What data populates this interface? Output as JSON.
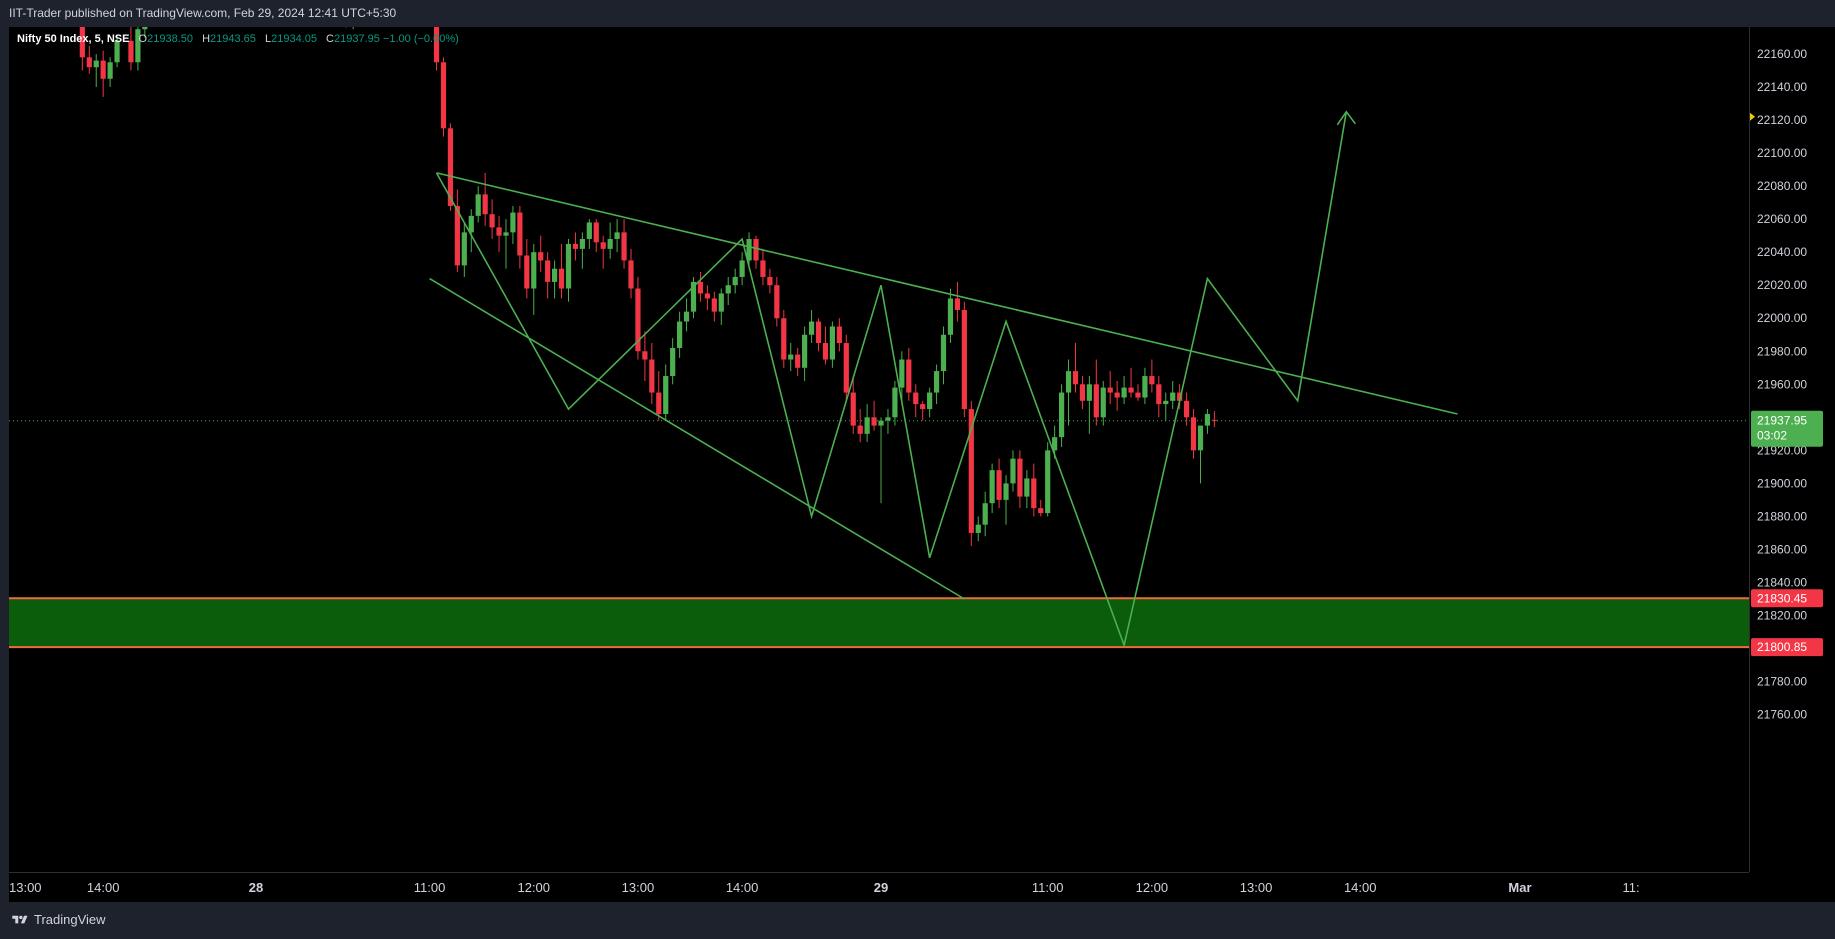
{
  "header": {
    "title": "IIT-Trader published on TradingView.com, Feb 29, 2024 12:41 UTC+5:30"
  },
  "legend": {
    "symbol": "Nifty 50 Index, 5, NSE",
    "open_label": "O",
    "open": "21938.50",
    "high_label": "H",
    "high": "21943.65",
    "low_label": "L",
    "low": "21934.05",
    "close_label": "C",
    "close": "21937.95",
    "change": "−1.00 (−0.00%)"
  },
  "footer": {
    "brand": "TradingView"
  },
  "colors": {
    "up": "#4caf50",
    "down": "#f23645",
    "drawing": "#4caf50",
    "zone_fill": "#0b5c0b",
    "zone_edge": "#ef6c3a"
  },
  "chart_data": {
    "type": "candlestick",
    "timeframe": "5",
    "y_range": [
      21745,
      22180
    ],
    "y_ticks": [
      "22160.00",
      "22140.00",
      "22120.00",
      "22100.00",
      "22080.00",
      "22060.00",
      "22040.00",
      "22020.00",
      "22000.00",
      "21980.00",
      "21960.00",
      "21920.00",
      "21900.00",
      "21880.00",
      "21860.00",
      "21840.00",
      "21820.00",
      "21780.00",
      "21760.00"
    ],
    "x_ticks": [
      "13:00",
      "14:00",
      "28",
      "11:00",
      "12:00",
      "13:00",
      "14:00",
      "29",
      "11:00",
      "12:00",
      "13:00",
      "14:00",
      "Mar",
      "11:"
    ],
    "x_ticks_bar": [
      0,
      15,
      37,
      62,
      77,
      92,
      107,
      127,
      151,
      166,
      181,
      196,
      219,
      235
    ],
    "current_price": {
      "value": 21937.95,
      "label": "21937.95",
      "countdown": "03:02"
    },
    "levels": [
      {
        "value": 21830.45,
        "label": "21830.45"
      },
      {
        "value": 21800.85,
        "label": "21800.85"
      }
    ],
    "demand_zone": {
      "top": 21830.45,
      "bottom": 21800.85
    },
    "candles": [
      [
        12,
        22180,
        22185,
        22150,
        22158
      ],
      [
        13,
        22158,
        22165,
        22148,
        22152
      ],
      [
        14,
        22152,
        22160,
        22140,
        22156
      ],
      [
        15,
        22156,
        22162,
        22134,
        22145
      ],
      [
        16,
        22145,
        22158,
        22140,
        22155
      ],
      [
        17,
        22155,
        22172,
        22152,
        22168
      ],
      [
        19,
        22168,
        22180,
        22150,
        22155
      ],
      [
        20,
        22155,
        22182,
        22150,
        22175
      ],
      [
        21,
        22175,
        22185,
        22170,
        22180
      ],
      [
        50,
        22182,
        22186,
        22176,
        22178
      ],
      [
        51,
        22178,
        22184,
        22175,
        22180
      ],
      [
        63,
        22180,
        22182,
        22150,
        22155
      ],
      [
        64,
        22155,
        22158,
        22110,
        22115
      ],
      [
        65,
        22115,
        22118,
        22065,
        22068
      ],
      [
        66,
        22068,
        22078,
        22028,
        22032
      ],
      [
        67,
        22032,
        22058,
        22025,
        22052
      ],
      [
        68,
        22052,
        22066,
        22040,
        22062
      ],
      [
        69,
        22062,
        22080,
        22058,
        22075
      ],
      [
        70,
        22075,
        22088,
        22056,
        22063
      ],
      [
        71,
        22063,
        22072,
        22048,
        22055
      ],
      [
        72,
        22055,
        22062,
        22040,
        22050
      ],
      [
        73,
        22050,
        22060,
        22030,
        22052
      ],
      [
        74,
        22052,
        22068,
        22045,
        22064
      ],
      [
        75,
        22064,
        22068,
        22030,
        22038
      ],
      [
        76,
        22038,
        22048,
        22012,
        22018
      ],
      [
        77,
        22018,
        22045,
        22002,
        22040
      ],
      [
        78,
        22040,
        22050,
        22028,
        22035
      ],
      [
        79,
        22035,
        22040,
        22012,
        22022
      ],
      [
        80,
        22022,
        22035,
        22012,
        22030
      ],
      [
        81,
        22030,
        22045,
        22012,
        22018
      ],
      [
        82,
        22018,
        22048,
        22010,
        22045
      ],
      [
        83,
        22045,
        22052,
        22035,
        22042
      ],
      [
        84,
        22042,
        22052,
        22030,
        22048
      ],
      [
        85,
        22048,
        22060,
        22042,
        22058
      ],
      [
        86,
        22058,
        22060,
        22040,
        22046
      ],
      [
        87,
        22046,
        22050,
        22030,
        22042
      ],
      [
        88,
        22042,
        22058,
        22036,
        22048
      ],
      [
        89,
        22048,
        22060,
        22040,
        22052
      ],
      [
        90,
        22052,
        22060,
        22030,
        22035
      ],
      [
        91,
        22035,
        22042,
        22012,
        22018
      ],
      [
        92,
        22018,
        22025,
        21975,
        21980
      ],
      [
        93,
        21980,
        21992,
        21962,
        21975
      ],
      [
        94,
        21975,
        21985,
        21948,
        21955
      ],
      [
        95,
        21955,
        21968,
        21938,
        21942
      ],
      [
        96,
        21942,
        21972,
        21938,
        21965
      ],
      [
        97,
        21965,
        21988,
        21960,
        21982
      ],
      [
        98,
        21982,
        22004,
        21976,
        21998
      ],
      [
        99,
        21998,
        22012,
        21992,
        22004
      ],
      [
        100,
        22004,
        22025,
        22000,
        22022
      ],
      [
        101,
        22022,
        22028,
        22010,
        22015
      ],
      [
        102,
        22015,
        22020,
        22005,
        22012
      ],
      [
        103,
        22012,
        22016,
        21998,
        22004
      ],
      [
        104,
        22004,
        22018,
        21996,
        22015
      ],
      [
        105,
        22015,
        22025,
        22008,
        22020
      ],
      [
        106,
        22020,
        22030,
        22015,
        22025
      ],
      [
        107,
        22025,
        22040,
        22020,
        22035
      ],
      [
        108,
        22035,
        22052,
        22030,
        22048
      ],
      [
        109,
        22048,
        22050,
        22030,
        22035
      ],
      [
        110,
        22035,
        22042,
        22020,
        22025
      ],
      [
        111,
        22025,
        22030,
        22015,
        22020
      ],
      [
        112,
        22020,
        22025,
        21995,
        22000
      ],
      [
        113,
        22000,
        22005,
        21970,
        21975
      ],
      [
        114,
        21975,
        21985,
        21968,
        21978
      ],
      [
        115,
        21978,
        21982,
        21965,
        21970
      ],
      [
        116,
        21970,
        21995,
        21962,
        21990
      ],
      [
        117,
        21990,
        22005,
        21985,
        21998
      ],
      [
        118,
        21998,
        22000,
        21980,
        21985
      ],
      [
        119,
        21985,
        21995,
        21972,
        21975
      ],
      [
        120,
        21975,
        21998,
        21970,
        21995
      ],
      [
        121,
        21995,
        22000,
        21980,
        21985
      ],
      [
        122,
        21985,
        21990,
        21950,
        21955
      ],
      [
        123,
        21955,
        21965,
        21930,
        21935
      ],
      [
        124,
        21935,
        21945,
        21925,
        21930
      ],
      [
        125,
        21930,
        21948,
        21925,
        21940
      ],
      [
        126,
        21940,
        21950,
        21932,
        21935
      ],
      [
        127,
        21935,
        21940,
        21888,
        21938
      ],
      [
        128,
        21938,
        21945,
        21930,
        21940
      ],
      [
        129,
        21940,
        21962,
        21935,
        21958
      ],
      [
        130,
        21958,
        21980,
        21950,
        21975
      ],
      [
        131,
        21975,
        21982,
        21950,
        21955
      ],
      [
        132,
        21955,
        21960,
        21940,
        21948
      ],
      [
        133,
        21948,
        21950,
        21938,
        21945
      ],
      [
        134,
        21945,
        21958,
        21940,
        21955
      ],
      [
        135,
        21955,
        21972,
        21948,
        21968
      ],
      [
        136,
        21968,
        21995,
        21960,
        21990
      ],
      [
        137,
        21990,
        22018,
        21985,
        22012
      ],
      [
        138,
        22012,
        22022,
        21998,
        22005
      ],
      [
        139,
        22005,
        22010,
        21940,
        21945
      ],
      [
        140,
        21945,
        21950,
        21862,
        21870
      ],
      [
        141,
        21870,
        21880,
        21865,
        21875
      ],
      [
        142,
        21875,
        21895,
        21868,
        21888
      ],
      [
        143,
        21888,
        21912,
        21882,
        21908
      ],
      [
        144,
        21908,
        21915,
        21885,
        21890
      ],
      [
        145,
        21890,
        21905,
        21875,
        21900
      ],
      [
        146,
        21900,
        21920,
        21895,
        21915
      ],
      [
        147,
        21915,
        21920,
        21885,
        21892
      ],
      [
        148,
        21892,
        21908,
        21885,
        21903
      ],
      [
        149,
        21903,
        21912,
        21880,
        21885
      ],
      [
        150,
        21885,
        21890,
        21880,
        21882
      ],
      [
        151,
        21882,
        21925,
        21880,
        21920
      ],
      [
        152,
        21920,
        21935,
        21915,
        21928
      ],
      [
        153,
        21928,
        21960,
        21922,
        21955
      ],
      [
        154,
        21955,
        21975,
        21935,
        21968
      ],
      [
        155,
        21968,
        21985,
        21955,
        21960
      ],
      [
        156,
        21960,
        21965,
        21945,
        21950
      ],
      [
        157,
        21950,
        21965,
        21930,
        21960
      ],
      [
        158,
        21960,
        21975,
        21935,
        21940
      ],
      [
        159,
        21940,
        21962,
        21935,
        21958
      ],
      [
        160,
        21958,
        21968,
        21948,
        21955
      ],
      [
        161,
        21955,
        21962,
        21944,
        21952
      ],
      [
        162,
        21952,
        21965,
        21948,
        21958
      ],
      [
        163,
        21958,
        21970,
        21952,
        21955
      ],
      [
        164,
        21955,
        21960,
        21950,
        21952
      ],
      [
        165,
        21952,
        21970,
        21948,
        21965
      ],
      [
        166,
        21965,
        21975,
        21955,
        21960
      ],
      [
        167,
        21960,
        21965,
        21940,
        21948
      ],
      [
        168,
        21948,
        21955,
        21938,
        21950
      ],
      [
        169,
        21950,
        21962,
        21945,
        21955
      ],
      [
        170,
        21955,
        21960,
        21945,
        21950
      ],
      [
        171,
        21950,
        21955,
        21935,
        21940
      ],
      [
        172,
        21940,
        21945,
        21915,
        21920
      ],
      [
        173,
        21920,
        21935,
        21900,
        21935
      ],
      [
        174,
        21935,
        21945,
        21930,
        21942
      ],
      [
        175,
        21938.5,
        21943.65,
        21934.05,
        21937.95
      ]
    ],
    "trendlines": [
      {
        "name": "upper-channel-line",
        "points": [
          [
            63,
            22088
          ],
          [
            210,
            21942
          ]
        ]
      },
      {
        "name": "lower-channel-line",
        "points": [
          [
            62,
            22024
          ],
          [
            139,
            21830
          ]
        ]
      },
      {
        "name": "zigzag-path",
        "points": [
          [
            63,
            22088
          ],
          [
            82,
            21945
          ],
          [
            107,
            22048
          ],
          [
            117,
            21880
          ],
          [
            127,
            22020
          ],
          [
            134,
            21855
          ],
          [
            145,
            21998
          ],
          [
            162,
            21802
          ],
          [
            174,
            22024
          ],
          [
            187,
            21950
          ],
          [
            194,
            22125
          ]
        ]
      }
    ],
    "arrow": {
      "at": [
        194,
        22125
      ]
    }
  }
}
